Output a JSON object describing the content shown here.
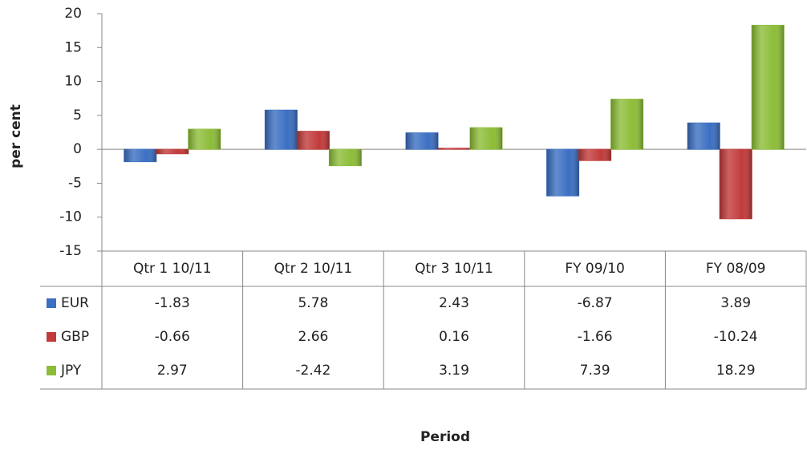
{
  "chart_data": {
    "type": "bar",
    "x_label": "Period",
    "y_label": "per cent",
    "categories": [
      "Qtr 1 10/11",
      "Qtr 2 10/11",
      "Qtr 3 10/11",
      "FY 09/10",
      "FY 08/09"
    ],
    "series": [
      {
        "name": "EUR",
        "color": "#3b6fc2",
        "values": [
          -1.83,
          5.78,
          2.43,
          -6.87,
          3.89
        ]
      },
      {
        "name": "GBP",
        "color": "#c23a3a",
        "values": [
          -0.66,
          2.66,
          0.16,
          -1.66,
          -10.24
        ]
      },
      {
        "name": "JPY",
        "color": "#8dbd38",
        "values": [
          2.97,
          -2.42,
          3.19,
          7.39,
          18.29
        ]
      }
    ],
    "ylim": [
      -15,
      20
    ],
    "yticks": [
      -15,
      -10,
      -5,
      0,
      5,
      10,
      15,
      20
    ],
    "grid": false
  }
}
